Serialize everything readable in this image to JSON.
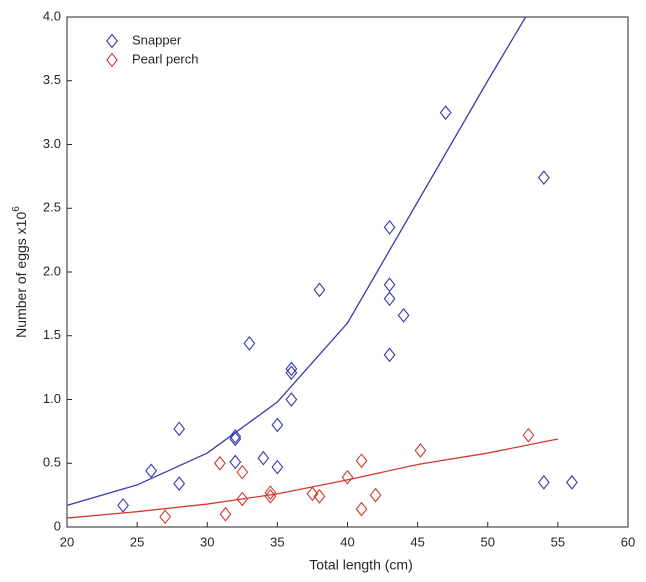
{
  "chart_data": {
    "type": "scatter",
    "xlabel": "Total length (cm)",
    "ylabel": {
      "text": "Number of eggs x10",
      "superscript": "6"
    },
    "xlim": [
      20,
      60
    ],
    "xticks": [
      20,
      25,
      30,
      35,
      40,
      45,
      50,
      55,
      60
    ],
    "ylim": [
      0,
      4.0
    ],
    "yticks": [
      0,
      0.5,
      {
        "value": 1,
        "label": "1.0"
      },
      1.5,
      {
        "value": 2,
        "label": "2.0"
      },
      2.5,
      {
        "value": 3,
        "label": "3.0"
      },
      3.5,
      {
        "value": 4,
        "label": "4.0"
      }
    ],
    "grid": false,
    "legend": "upper-left",
    "marker": "diamond",
    "series": [
      {
        "name": "Snapper",
        "color": "#3a3ab0",
        "x": [
          24,
          26,
          28,
          28,
          32,
          32,
          32,
          33,
          34,
          35,
          35,
          36,
          36,
          36,
          38,
          43,
          43,
          43,
          43,
          44,
          47,
          54,
          54,
          56
        ],
        "values": [
          0.17,
          0.44,
          0.77,
          0.34,
          0.71,
          0.69,
          0.51,
          1.44,
          0.54,
          0.8,
          0.47,
          1.24,
          1.21,
          1.0,
          1.86,
          2.35,
          1.9,
          1.79,
          1.35,
          1.66,
          3.25,
          2.74,
          0.35,
          0.35
        ]
      },
      {
        "name": "Pearl perch",
        "color": "#d23a2e",
        "x": [
          27,
          30.9,
          31.3,
          32.5,
          32.5,
          34.5,
          34.5,
          37.5,
          38,
          40,
          41,
          41,
          42,
          45.2,
          52.9
        ],
        "values": [
          0.08,
          0.5,
          0.1,
          0.43,
          0.22,
          0.27,
          0.24,
          0.26,
          0.24,
          0.39,
          0.52,
          0.14,
          0.25,
          0.6,
          0.72
        ]
      }
    ],
    "fits": [
      {
        "color": "#3a3ab0",
        "x": [
          20,
          25,
          30,
          35,
          40,
          45,
          50,
          52.7
        ],
        "values": [
          0.17,
          0.33,
          0.58,
          0.98,
          1.6,
          2.55,
          3.5,
          4.0
        ]
      },
      {
        "color": "#d23a2e",
        "x": [
          20,
          25,
          30,
          35,
          40,
          45,
          50,
          55
        ],
        "values": [
          0.07,
          0.12,
          0.18,
          0.26,
          0.37,
          0.49,
          0.58,
          0.69
        ]
      }
    ]
  }
}
